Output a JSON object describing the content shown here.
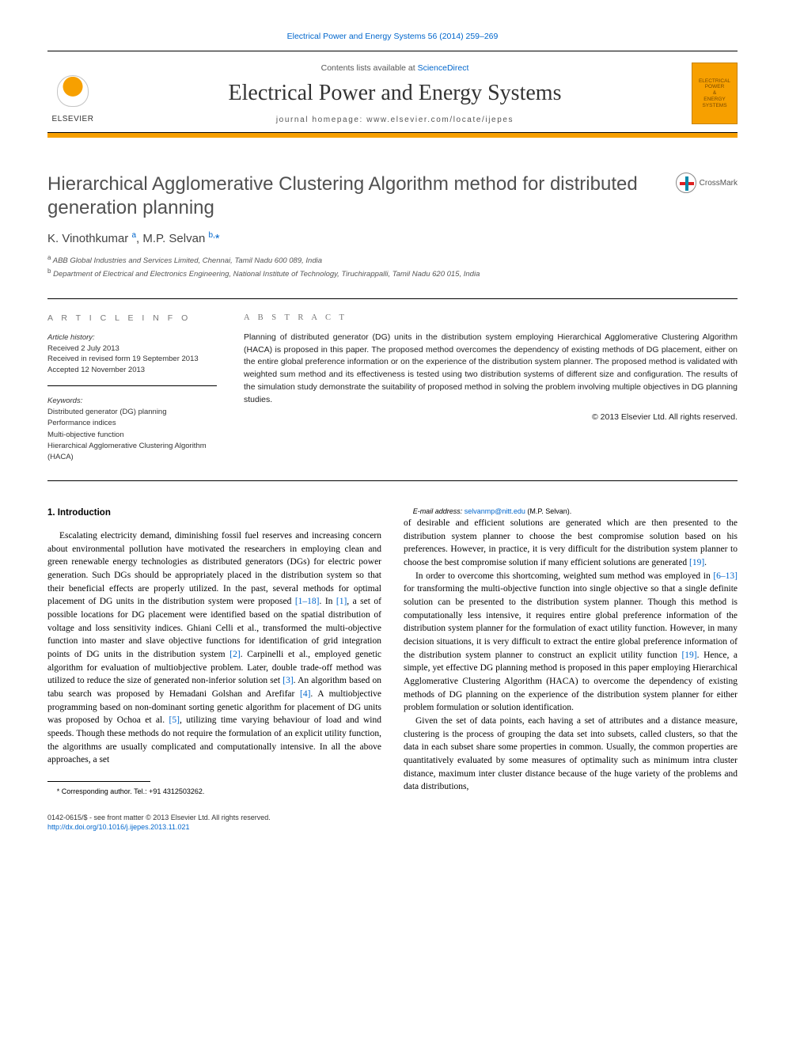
{
  "top_ref": "Electrical Power and Energy Systems 56 (2014) 259–269",
  "contents_line_prefix": "Contents lists available at ",
  "contents_line_link": "ScienceDirect",
  "journal_title": "Electrical Power and Energy Systems",
  "homepage_line": "journal homepage: www.elsevier.com/locate/ijepes",
  "elsevier_word": "ELSEVIER",
  "cover_lines": [
    "ELECTRICAL",
    "POWER",
    "&",
    "ENERGY",
    "SYSTEMS"
  ],
  "crossmark_label": "CrossMark",
  "paper_title": "Hierarchical Agglomerative Clustering Algorithm method for distributed generation planning",
  "authors_html": "K. Vinothkumar <sup>a</sup>, M.P. Selvan <sup>b,</sup><span class=\"star\">*</span>",
  "affiliations": [
    {
      "sup": "a",
      "text": "ABB Global Industries and Services Limited, Chennai, Tamil Nadu 600 089, India"
    },
    {
      "sup": "b",
      "text": "Department of Electrical and Electronics Engineering, National Institute of Technology, Tiruchirappalli, Tamil Nadu 620 015, India"
    }
  ],
  "article_info_heading": "A R T I C L E   I N F O",
  "article_history_label": "Article history:",
  "history_lines": [
    "Received 2 July 2013",
    "Received in revised form 19 September 2013",
    "Accepted 12 November 2013"
  ],
  "keywords_label": "Keywords:",
  "keywords": [
    "Distributed generator (DG) planning",
    "Performance indices",
    "Multi-objective function",
    "Hierarchical Agglomerative Clustering Algorithm (HACA)"
  ],
  "abstract_heading": "A B S T R A C T",
  "abstract_text": "Planning of distributed generator (DG) units in the distribution system employing Hierarchical Agglomerative Clustering Algorithm (HACA) is proposed in this paper. The proposed method overcomes the dependency of existing methods of DG placement, either on the entire global preference information or on the experience of the distribution system planner. The proposed method is validated with weighted sum method and its effectiveness is tested using two distribution systems of different size and configuration. The results of the simulation study demonstrate the suitability of proposed method in solving the problem involving multiple objectives in DG planning studies.",
  "copyright_line": "© 2013 Elsevier Ltd. All rights reserved.",
  "section_1_heading": "1. Introduction",
  "body_paragraphs": [
    "Escalating electricity demand, diminishing fossil fuel reserves and increasing concern about environmental pollution have motivated the researchers in employing clean and green renewable energy technologies as distributed generators (DGs) for electric power generation. Such DGs should be appropriately placed in the distribution system so that their beneficial effects are properly utilized. In the past, several methods for optimal placement of DG units in the distribution system were proposed <span class=\"cite\">[1–18]</span>. In <span class=\"cite\">[1]</span>, a set of possible locations for DG placement were identified based on the spatial distribution of voltage and loss sensitivity indices. Ghiani Celli et al., transformed the multi-objective function into master and slave objective functions for identification of grid integration points of DG units in the distribution system <span class=\"cite\">[2]</span>. Carpinelli et al., employed genetic algorithm for evaluation of multiobjective problem. Later, double trade-off method was utilized to reduce the size of generated non-inferior solution set <span class=\"cite\">[3]</span>. An algorithm based on tabu search was proposed by Hemadani Golshan and Arefifar <span class=\"cite\">[4]</span>. A multiobjective programming based on non-dominant sorting genetic algorithm for placement of DG units was proposed by Ochoa et al. <span class=\"cite\">[5]</span>, utilizing time varying behaviour of load and wind speeds. Though these methods do not require the formulation of an explicit utility function, the algorithms are usually complicated and computationally intensive. In all the above approaches, a set",
    "of desirable and efficient solutions are generated which are then presented to the distribution system planner to choose the best compromise solution based on his preferences. However, in practice, it is very difficult for the distribution system planner to choose the best compromise solution if many efficient solutions are generated <span class=\"cite\">[19]</span>.",
    "In order to overcome this shortcoming, weighted sum method was employed in <span class=\"cite\">[6–13]</span> for transforming the multi-objective function into single objective so that a single definite solution can be presented to the distribution system planner. Though this method is computationally less intensive, it requires entire global preference information of the distribution system planner for the formulation of exact utility function. However, in many decision situations, it is very difficult to extract the entire global preference information of the distribution system planner to construct an explicit utility function <span class=\"cite\">[19]</span>. Hence, a simple, yet effective DG planning method is proposed in this paper employing Hierarchical Agglomerative Clustering Algorithm (HACA) to overcome the dependency of existing methods of DG planning on the experience of the distribution system planner for either problem formulation or solution identification.",
    "Given the set of data points, each having a set of attributes and a distance measure, clustering is the process of grouping the data set into subsets, called clusters, so that the data in each subset share some properties in common. Usually, the common properties are quantitatively evaluated by some measures of optimality such as minimum intra cluster distance, maximum inter cluster distance because of the huge variety of the problems and data distributions,"
  ],
  "footnote_corresponding": "* Corresponding author. Tel.: +91 4312503262.",
  "footnote_email_label": "E-mail address: ",
  "footnote_email": "selvanmp@nitt.edu",
  "footnote_email_suffix": " (M.P. Selvan).",
  "footer_line1": "0142-0615/$ - see front matter © 2013 Elsevier Ltd. All rights reserved.",
  "footer_doi": "http://dx.doi.org/10.1016/j.ijepes.2013.11.021",
  "colors": {
    "link": "#0066cc",
    "accent": "#f7a000",
    "text": "#000000",
    "muted": "#555555"
  }
}
